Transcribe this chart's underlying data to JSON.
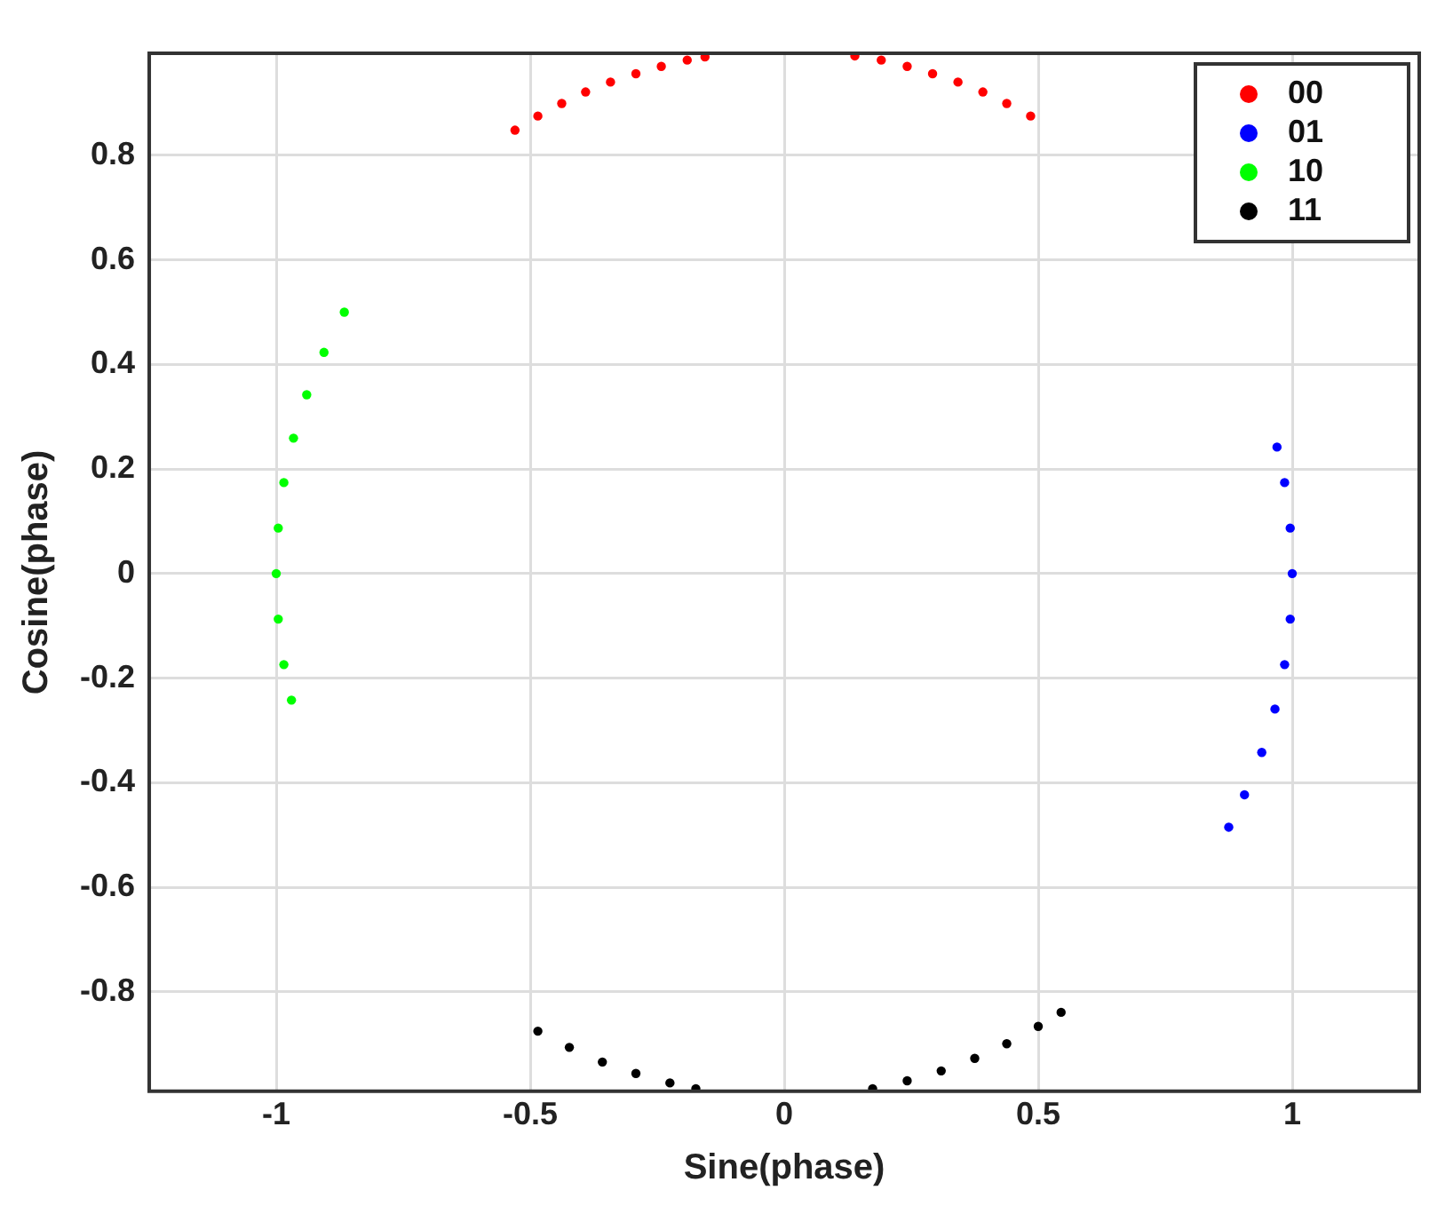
{
  "chart_data": {
    "type": "scatter",
    "xlabel": "Sine(phase)",
    "ylabel": "Cosine(phase)",
    "xlim": [
      -1.25,
      1.25
    ],
    "ylim": [
      -0.99,
      0.995
    ],
    "xticks": [
      -1,
      -0.5,
      0,
      0.5,
      1
    ],
    "yticks": [
      -0.8,
      -0.6,
      -0.4,
      -0.2,
      0,
      0.2,
      0.4,
      0.6,
      0.8
    ],
    "grid": true,
    "legend": "top right",
    "marker": "circle",
    "series": [
      {
        "name": "00",
        "color": "#ff0000",
        "x": [
          -0.53,
          -0.485,
          -0.438,
          -0.391,
          -0.342,
          -0.292,
          -0.242,
          -0.191,
          -0.156,
          0.139,
          0.191,
          0.242,
          0.292,
          0.342,
          0.391,
          0.438,
          0.485
        ],
        "values": [
          0.848,
          0.875,
          0.899,
          0.921,
          0.94,
          0.956,
          0.97,
          0.982,
          0.988,
          0.99,
          0.982,
          0.97,
          0.956,
          0.94,
          0.921,
          0.899,
          0.875
        ]
      },
      {
        "name": "01",
        "color": "#0000ff",
        "x": [
          0.97,
          0.985,
          0.996,
          1.0,
          0.996,
          0.985,
          0.966,
          0.94,
          0.906,
          0.875
        ],
        "values": [
          0.242,
          0.174,
          0.087,
          0,
          -0.087,
          -0.174,
          -0.259,
          -0.342,
          -0.423,
          -0.485
        ]
      },
      {
        "name": "10",
        "color": "#00ff00",
        "x": [
          -0.866,
          -0.906,
          -0.94,
          -0.966,
          -0.985,
          -0.996,
          -1.0,
          -0.996,
          -0.985,
          -0.97
        ],
        "values": [
          0.5,
          0.423,
          0.342,
          0.259,
          0.174,
          0.087,
          0,
          -0.087,
          -0.174,
          -0.242
        ]
      },
      {
        "name": "11",
        "color": "#000000",
        "x": [
          -0.485,
          -0.423,
          -0.358,
          -0.292,
          -0.225,
          -0.174,
          0.174,
          0.242,
          0.309,
          0.375,
          0.438,
          0.5,
          0.545
        ],
        "values": [
          -0.875,
          -0.906,
          -0.934,
          -0.956,
          -0.974,
          -0.985,
          -0.985,
          -0.97,
          -0.951,
          -0.927,
          -0.899,
          -0.866,
          -0.839
        ]
      }
    ]
  }
}
